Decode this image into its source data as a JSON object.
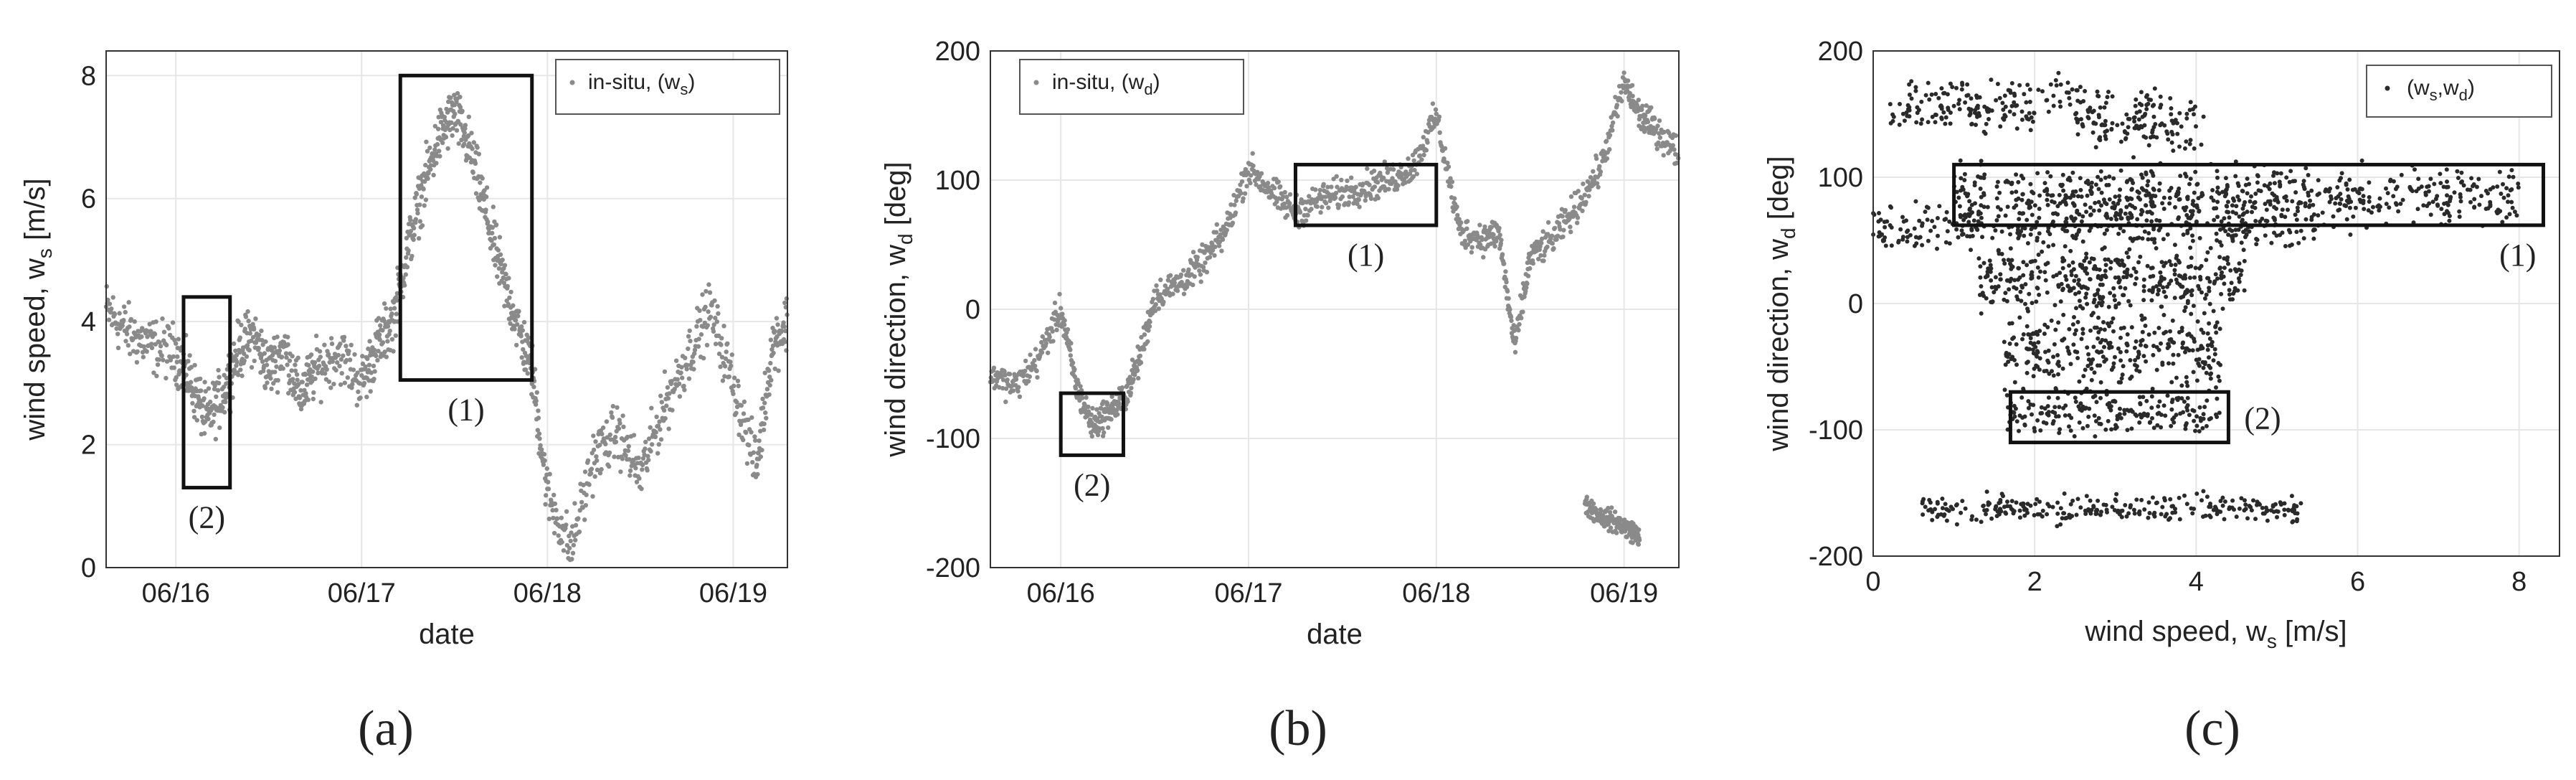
{
  "chart_data": [
    {
      "panel_label": "(a)",
      "type": "scatter",
      "xlabel": "date",
      "ylabel_main": "wind speed, w",
      "ylabel_sub": "s",
      "ylabel_unit": " [m/s]",
      "ylim": [
        0,
        8.4
      ],
      "yticks": [
        0,
        2,
        4,
        6,
        8
      ],
      "xlim": [
        "06/15 15:00",
        "06/19 07:00"
      ],
      "xticks": [
        "06/16",
        "06/17",
        "06/18",
        "06/19"
      ],
      "grid": true,
      "legend_placement": "top-right",
      "series": [
        {
          "name_main": "in-situ, (w",
          "name_sub": "s",
          "name_end": ")",
          "color": "#8a8a8a",
          "marker": "dot",
          "x": [
            "06/15 15:00",
            "06/15 18:00",
            "06/15 21:00",
            "06/16 00:00",
            "06/16 02:00",
            "06/16 04:00",
            "06/16 06:00",
            "06/16 08:00",
            "06/16 10:00",
            "06/16 12:00",
            "06/16 14:00",
            "06/16 16:00",
            "06/16 18:00",
            "06/16 21:00",
            "06/17 00:00",
            "06/17 02:00",
            "06/17 04:00",
            "06/17 06:00",
            "06/17 08:00",
            "06/17 10:00",
            "06/17 12:00",
            "06/17 14:00",
            "06/17 16:00",
            "06/17 18:00",
            "06/17 20:00",
            "06/17 22:00",
            "06/18 00:00",
            "06/18 03:00",
            "06/18 06:00",
            "06/18 09:00",
            "06/18 12:00",
            "06/18 15:00",
            "06/18 18:00",
            "06/18 21:00",
            "06/19 00:00",
            "06/19 03:00",
            "06/19 05:00",
            "06/19 07:00"
          ],
          "y": [
            4.2,
            3.8,
            3.6,
            3.5,
            3.0,
            2.4,
            2.8,
            3.5,
            3.8,
            3.2,
            3.6,
            2.8,
            3.2,
            3.5,
            3.0,
            3.6,
            4.0,
            5.2,
            6.2,
            7.0,
            7.4,
            6.8,
            5.8,
            4.8,
            4.0,
            3.2,
            1.2,
            0.3,
            1.8,
            2.2,
            1.5,
            2.6,
            3.4,
            4.2,
            3.0,
            1.6,
            3.6,
            4.0
          ],
          "spread": 0.45
        }
      ],
      "annotations": [
        {
          "label": "(1)",
          "x_range": [
            "06/17 05:00",
            "06/17 22:00"
          ],
          "y_range": [
            3.05,
            8.0
          ]
        },
        {
          "label": "(2)",
          "x_range": [
            "06/16 01:00",
            "06/16 07:00"
          ],
          "y_range": [
            1.3,
            4.4
          ]
        }
      ]
    },
    {
      "panel_label": "(b)",
      "type": "scatter",
      "xlabel": "date",
      "ylabel_main": "wind direction, w",
      "ylabel_sub": "d",
      "ylabel_unit": " [deg]",
      "ylim": [
        -200,
        200
      ],
      "yticks": [
        -200,
        -100,
        0,
        100,
        200
      ],
      "xlim": [
        "06/15 15:00",
        "06/19 07:00"
      ],
      "xticks": [
        "06/16",
        "06/17",
        "06/18",
        "06/19"
      ],
      "grid": true,
      "legend_placement": "top-left",
      "series": [
        {
          "name_main": "in-situ, (w",
          "name_sub": "d",
          "name_end": ")",
          "color": "#8a8a8a",
          "marker": "dot",
          "x": [
            "06/15 15:00",
            "06/15 18:00",
            "06/15 21:00",
            "06/16 00:00",
            "06/16 02:00",
            "06/16 04:00",
            "06/16 06:00",
            "06/16 08:00",
            "06/16 10:00",
            "06/16 12:00",
            "06/16 15:00",
            "06/16 18:00",
            "06/16 21:00",
            "06/17 00:00",
            "06/17 03:00",
            "06/17 06:00",
            "06/17 09:00",
            "06/17 12:00",
            "06/17 15:00",
            "06/17 18:00",
            "06/17 21:00",
            "06/18 00:00",
            "06/18 03:00",
            "06/18 06:00",
            "06/18 08:00",
            "06/18 10:00",
            "06/18 12:00",
            "06/18 15:00",
            "06/18 18:00",
            "06/18 21:00",
            "06/19 00:00",
            "06/19 02:00",
            "06/19 04:00",
            "06/19 07:00"
          ],
          "y": [
            -50,
            -60,
            -40,
            0,
            -60,
            -90,
            -80,
            -70,
            -40,
            10,
            20,
            35,
            60,
            110,
            90,
            75,
            85,
            90,
            95,
            100,
            110,
            150,
            60,
            55,
            60,
            -30,
            40,
            55,
            80,
            110,
            175,
            150,
            140,
            120
          ],
          "spread": 12
        },
        {
          "name_main": "",
          "name_sub": "",
          "name_end": "",
          "color": "#8a8a8a",
          "marker": "dot",
          "x": [
            "06/18 19:00",
            "06/18 21:00",
            "06/18 23:00",
            "06/19 00:30",
            "06/19 02:00"
          ],
          "y": [
            -150,
            -160,
            -165,
            -170,
            -175
          ],
          "spread": 8
        }
      ],
      "annotations": [
        {
          "label": "(1)",
          "x_range": [
            "06/17 06:00",
            "06/18 00:00"
          ],
          "y_range": [
            65,
            112
          ]
        },
        {
          "label": "(2)",
          "x_range": [
            "06/16 00:00",
            "06/16 08:00"
          ],
          "y_range": [
            -113,
            -65
          ]
        }
      ]
    },
    {
      "panel_label": "(c)",
      "type": "scatter",
      "xlabel_main": "wind speed, w",
      "xlabel_sub": "s",
      "xlabel_unit": " [m/s]",
      "ylabel_main": "wind direction, w",
      "ylabel_sub": "d",
      "ylabel_unit": " [deg]",
      "xlim": [
        0,
        8.5
      ],
      "xticks": [
        0,
        2,
        4,
        6,
        8
      ],
      "ylim": [
        -200,
        200
      ],
      "yticks": [
        -200,
        -100,
        0,
        100,
        200
      ],
      "grid": true,
      "legend_placement": "top-right",
      "series": [
        {
          "name_main": "(w",
          "name_sub1": "s",
          "name_mid": ",w",
          "name_sub2": "d",
          "name_end": ")",
          "color": "#2a2a2a",
          "marker": "dot",
          "clusters": [
            {
              "x_range": [
                0.2,
                2.0
              ],
              "y_center": 150,
              "y_spread": 10,
              "n": 90
            },
            {
              "x_range": [
                0.4,
                2.6
              ],
              "y_center": 165,
              "y_spread": 12,
              "n": 80
            },
            {
              "x_range": [
                2.5,
                4.1
              ],
              "y_center": 145,
              "y_spread": 20,
              "n": 150
            },
            {
              "x_range": [
                1.0,
                8.0
              ],
              "y_center": 85,
              "y_spread": 18,
              "n": 620
            },
            {
              "x_range": [
                0.0,
                5.5
              ],
              "y_center": 60,
              "y_spread": 14,
              "n": 320
            },
            {
              "x_range": [
                1.3,
                4.6
              ],
              "y_center": 20,
              "y_spread": 22,
              "n": 380
            },
            {
              "x_range": [
                1.6,
                4.3
              ],
              "y_center": -35,
              "y_spread": 25,
              "n": 300
            },
            {
              "x_range": [
                1.6,
                4.3
              ],
              "y_center": -85,
              "y_spread": 14,
              "n": 200
            },
            {
              "x_range": [
                0.6,
                5.3
              ],
              "y_center": -163,
              "y_spread": 9,
              "n": 280
            }
          ]
        }
      ],
      "annotations": [
        {
          "label": "(1)",
          "x_range": [
            1.0,
            8.3
          ],
          "y_range": [
            62,
            110
          ]
        },
        {
          "label": "(2)",
          "x_range": [
            1.7,
            4.4
          ],
          "y_range": [
            -110,
            -70
          ]
        }
      ]
    }
  ]
}
